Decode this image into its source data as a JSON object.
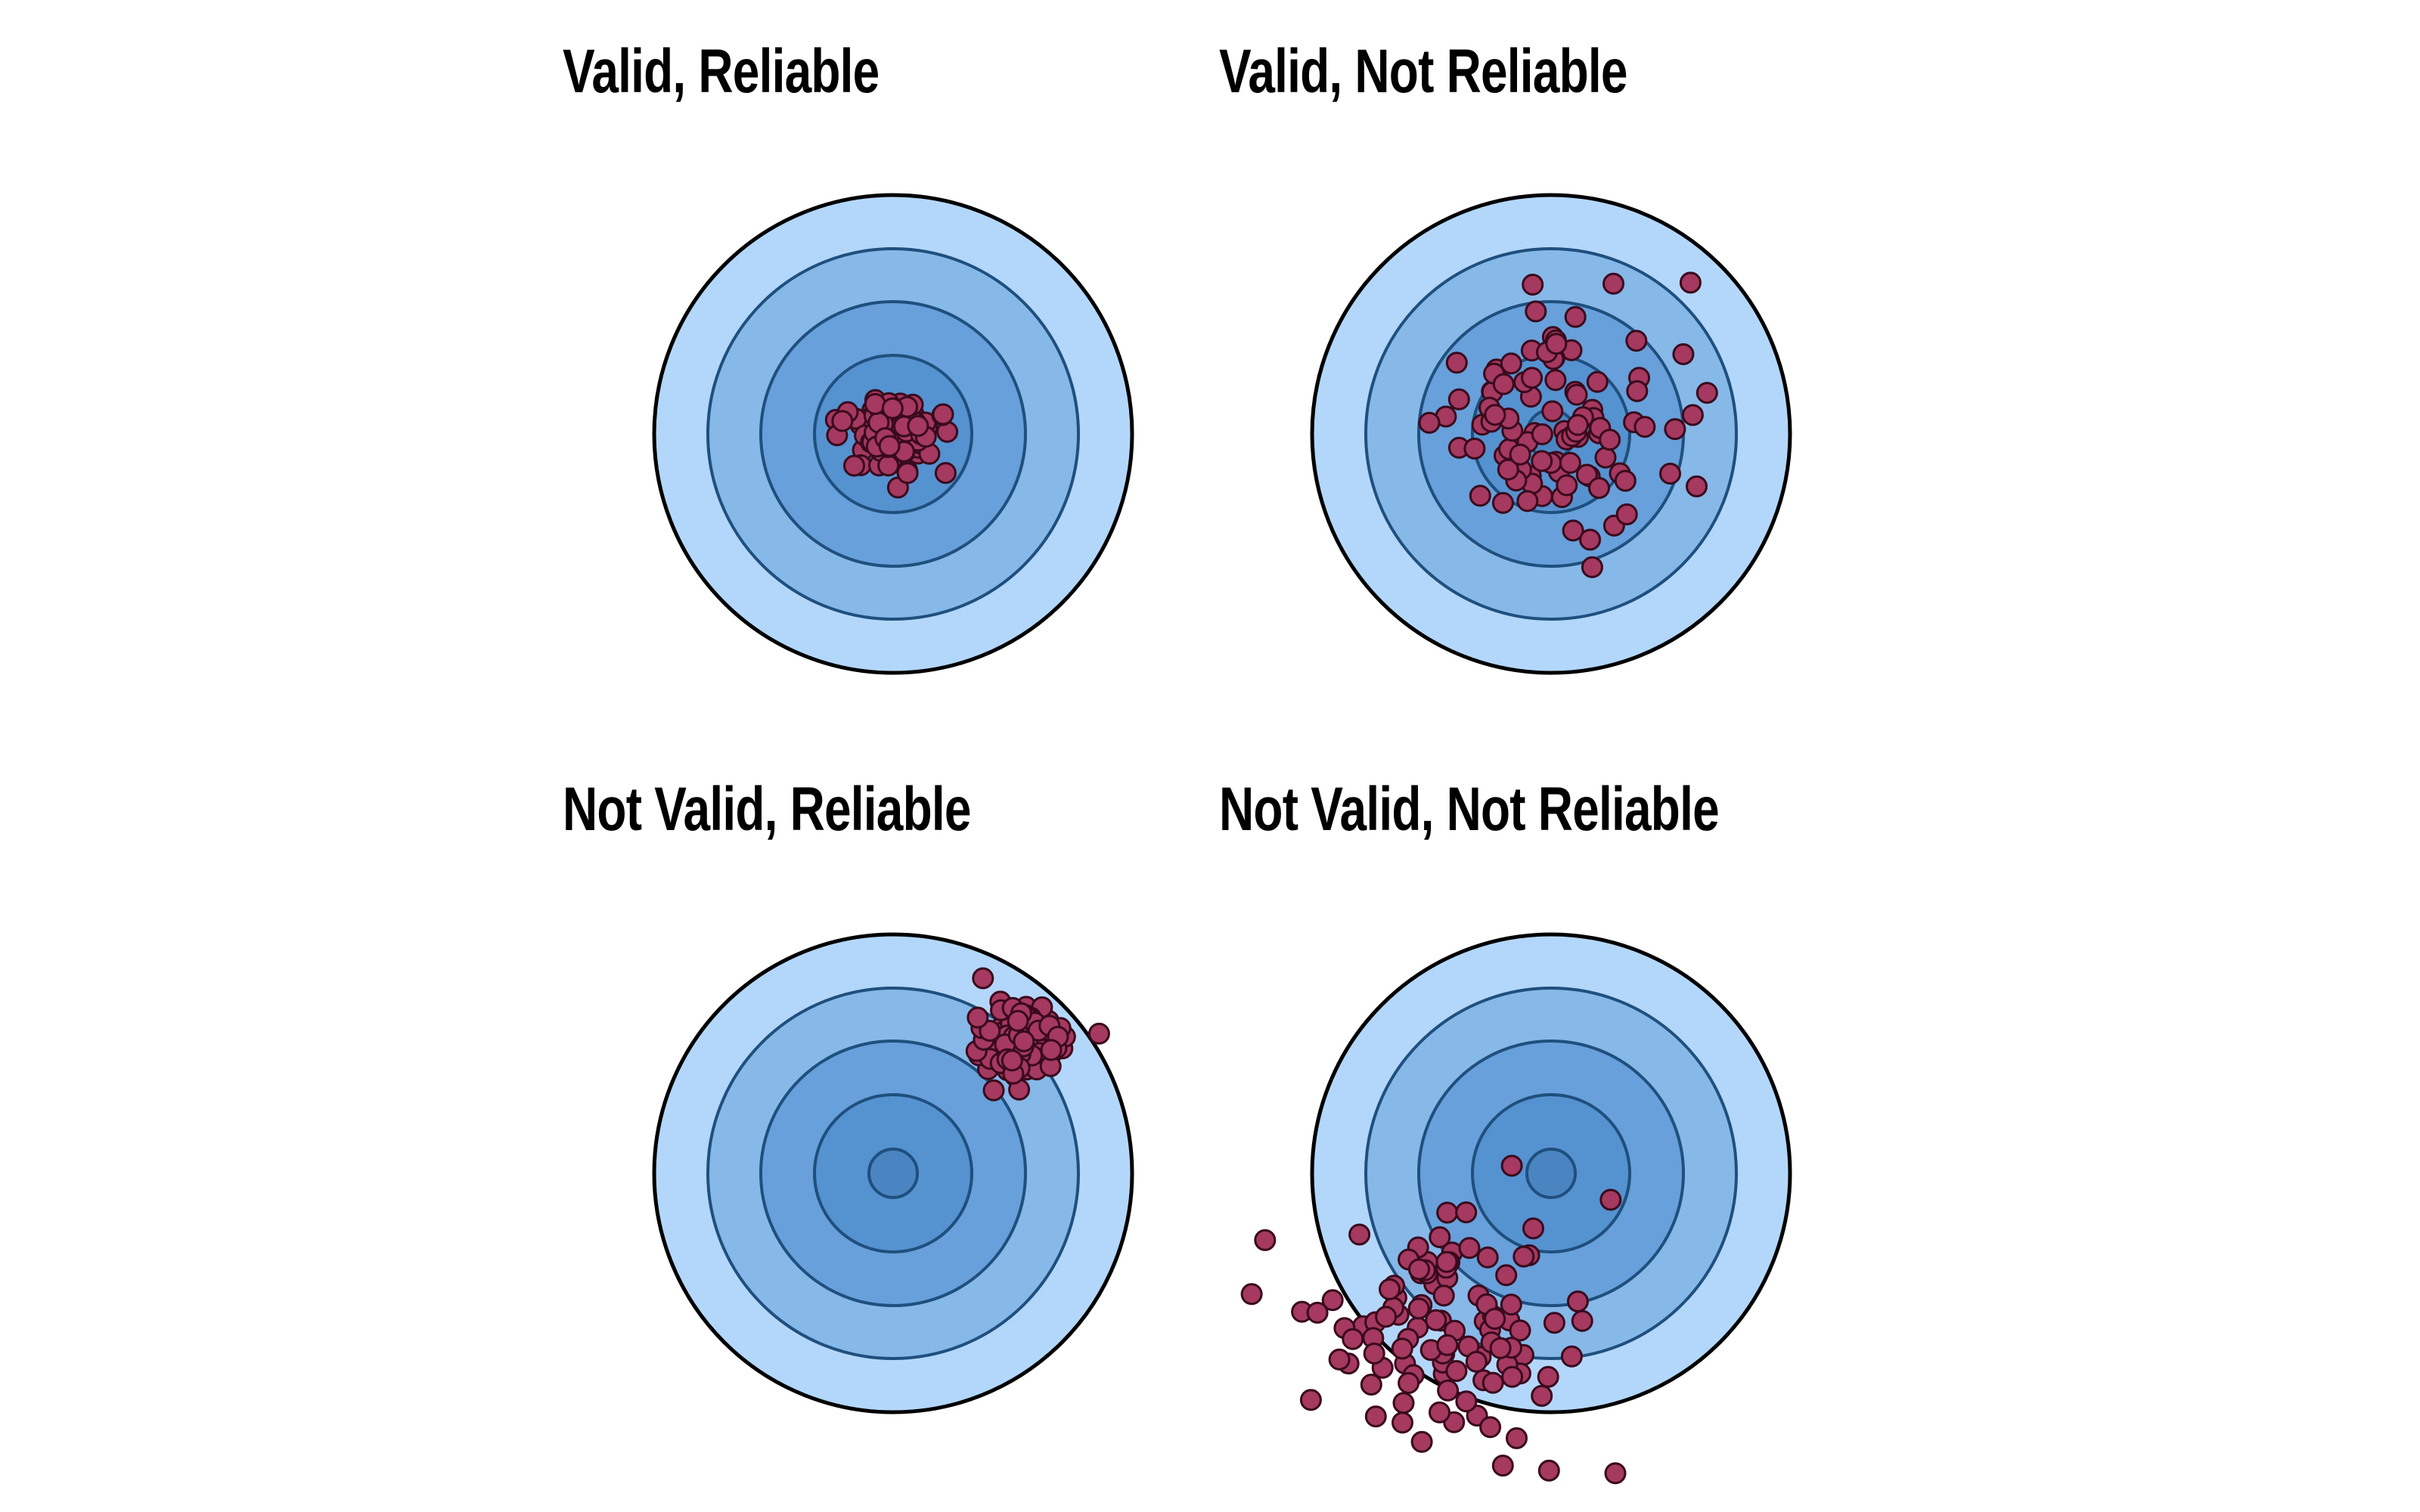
{
  "panels": [
    {
      "title": "Valid, Reliable",
      "spread": "tight",
      "offset": "center"
    },
    {
      "title": "Valid, Not Reliable",
      "spread": "wide",
      "offset": "center"
    },
    {
      "title": "Not Valid, Reliable",
      "spread": "tight",
      "offset": "upper-right"
    },
    {
      "title": "Not Valid, Not Reliable",
      "spread": "wide",
      "offset": "lower-left"
    }
  ],
  "colors": {
    "ring_1": "#b3d7fb",
    "ring_2": "#86b8e8",
    "ring_3": "#67a0da",
    "ring_4": "#5592d0",
    "bullseye": "#4a85c2",
    "ring_stroke": "#1f4f7d",
    "outer_stroke": "#000000",
    "shot_fill": "#a5395f",
    "shot_stroke": "#3a0a1c"
  }
}
